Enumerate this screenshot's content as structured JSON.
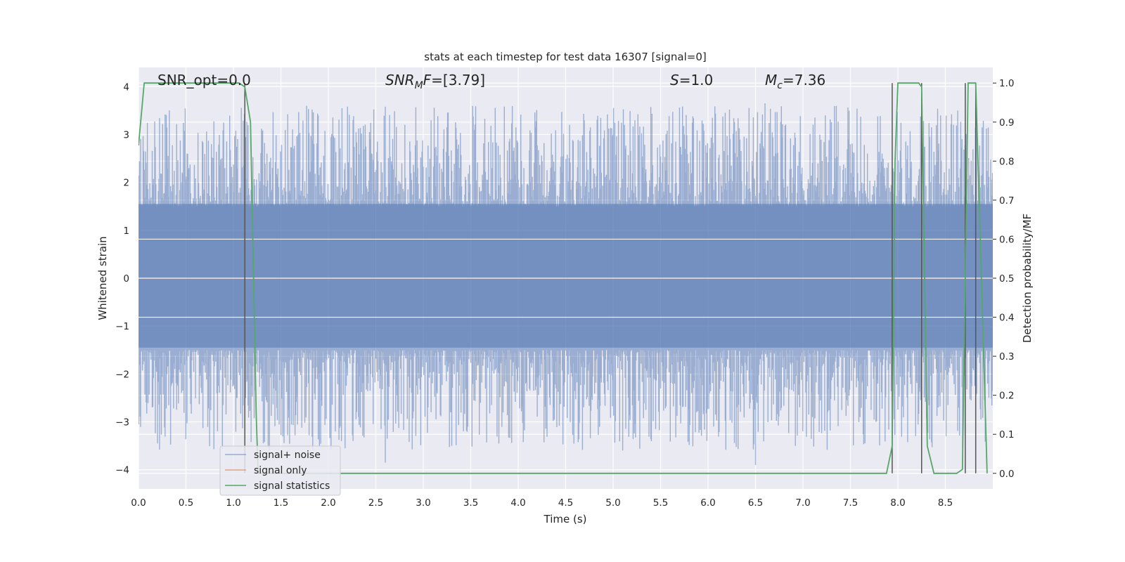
{
  "chart_data": {
    "type": "line",
    "title": "stats at each timestep for test data 16307 [signal=0]",
    "xlabel": "Time (s)",
    "ylabel_left": "Whitened strain",
    "ylabel_right": "Detection probability/MF",
    "xlim": [
      0.0,
      9.0
    ],
    "ylim_left": [
      -4.4,
      4.4
    ],
    "ylim_right": [
      -0.04,
      1.04
    ],
    "x_ticks": [
      "0.0",
      "0.5",
      "1.0",
      "1.5",
      "2.0",
      "2.5",
      "3.0",
      "3.5",
      "4.0",
      "4.5",
      "5.0",
      "5.5",
      "6.0",
      "6.5",
      "7.0",
      "7.5",
      "8.0",
      "8.5"
    ],
    "y_ticks_left": [
      "−4",
      "−3",
      "−2",
      "−1",
      "0",
      "1",
      "2",
      "3",
      "4"
    ],
    "y_ticks_right": [
      "0.0",
      "0.1",
      "0.2",
      "0.3",
      "0.4",
      "0.5",
      "0.6",
      "0.7",
      "0.8",
      "0.9",
      "1.0"
    ],
    "grid": true,
    "annotations": [
      {
        "text": "SNR_opt=0.0",
        "x": 0.2
      },
      {
        "text": "SNR_MF=[3.79]",
        "x": 2.6
      },
      {
        "text": "S=1.0",
        "x": 5.6
      },
      {
        "text": "M_c=7.36",
        "x": 6.6
      }
    ],
    "legend": {
      "placement": "lower-left",
      "entries": [
        "signal+ noise",
        "signal only",
        "signal statistics"
      ]
    },
    "colors": {
      "noise": "#4c72b0",
      "signal": "#dd8452",
      "stats": "#55a868",
      "vlines": "#555555",
      "axes_bg": "#eaeaf2"
    },
    "series": [
      {
        "name": "signal+ noise",
        "kind": "noise_band",
        "approx_abs_range": [
          1.5,
          3.6
        ],
        "notable_peaks": [
          [
            2.6,
            3.58
          ],
          [
            6.6,
            3.65
          ],
          [
            2.6,
            -3.85
          ],
          [
            6.5,
            -3.9
          ],
          [
            3.3,
            -3.5
          ],
          [
            0.2,
            -3.45
          ]
        ]
      },
      {
        "name": "signal only",
        "x": [
          0.0,
          9.0
        ],
        "y": [
          0.0,
          0.0
        ]
      },
      {
        "name": "signal statistics",
        "axis": "right",
        "x": [
          0.0,
          0.06,
          0.12,
          1.06,
          1.12,
          1.18,
          1.24,
          1.26,
          2.0,
          7.0,
          7.88,
          7.94,
          7.97,
          8.0,
          8.22,
          8.25,
          8.31,
          8.38,
          8.44,
          8.62,
          8.68,
          8.74,
          8.82,
          8.94
        ],
        "y": [
          0.84,
          1.0,
          1.0,
          1.0,
          0.99,
          0.9,
          0.15,
          0.0,
          0.0,
          0.0,
          0.0,
          0.07,
          0.8,
          1.0,
          1.0,
          0.99,
          0.07,
          0.0,
          0.0,
          0.0,
          0.01,
          1.0,
          1.0,
          0.0
        ]
      }
    ],
    "vertical_lines_x": [
      1.12,
      7.94,
      8.25,
      8.71,
      8.82
    ]
  }
}
